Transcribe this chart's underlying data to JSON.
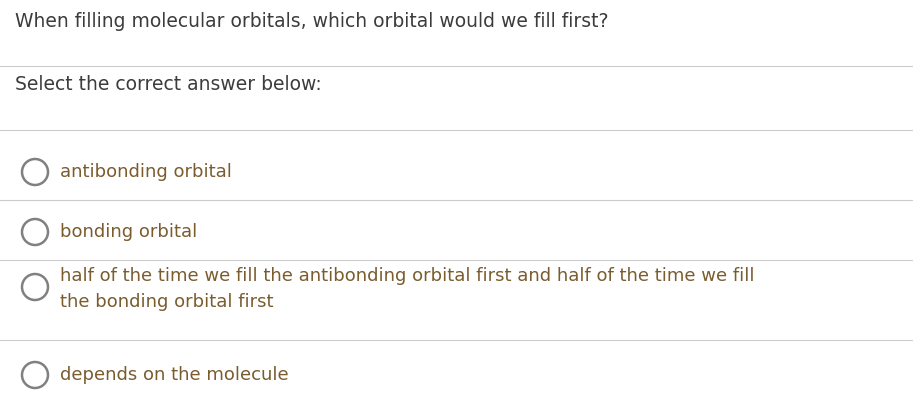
{
  "question": "When filling molecular orbitals, which orbital would we fill first?",
  "instruction": "Select the correct answer below:",
  "options": [
    "antibonding orbital",
    "bonding orbital",
    "half of the time we fill the antibonding orbital first and half of the time we fill\nthe bonding orbital first",
    "depends on the molecule"
  ],
  "question_color": "#3c3c3c",
  "instruction_color": "#3c3c3c",
  "option_color": "#7a5c2e",
  "circle_edge_color": "#808080",
  "line_color": "#cccccc",
  "bg_color": "#ffffff",
  "question_fontsize": 13.5,
  "instruction_fontsize": 13.5,
  "option_fontsize": 13.0,
  "fig_width": 9.13,
  "fig_height": 4.12,
  "dpi": 100
}
